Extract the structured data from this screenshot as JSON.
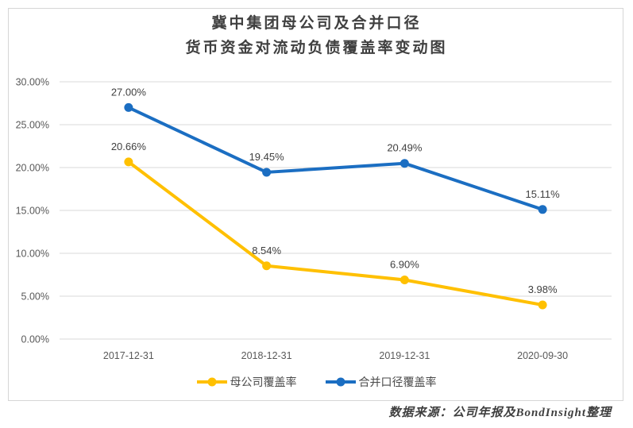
{
  "header": {
    "title_line1": "冀中集团母公司及合并口径",
    "title_line2": "货币资金对流动负债覆盖率变动图"
  },
  "footer": {
    "text": "数据来源：公司年报及BondInsight整理"
  },
  "colors": {
    "parent_series": "#FFC000",
    "consolidated_series": "#1B6EC2",
    "gridline": "#D9D9D9",
    "axis_text": "#595959",
    "data_label_text": "#3F3F3F",
    "chart_border": "#D6D6D6",
    "background": "#FFFFFF"
  },
  "chart_data": {
    "type": "line",
    "title": "冀中集团母公司及合并口径货币资金对流动负债覆盖率变动图",
    "categories": [
      "2017-12-31",
      "2018-12-31",
      "2019-12-31",
      "2020-09-30"
    ],
    "series": [
      {
        "name": "母公司覆盖率",
        "values": [
          20.66,
          8.54,
          6.9,
          3.98
        ],
        "labels": [
          "20.66%",
          "8.54%",
          "6.90%",
          "3.98%"
        ],
        "color": "#FFC000"
      },
      {
        "name": "合并口径覆盖率",
        "values": [
          27.0,
          19.45,
          20.49,
          15.11
        ],
        "labels": [
          "27.00%",
          "19.45%",
          "20.49%",
          "15.11%"
        ],
        "color": "#1B6EC2"
      }
    ],
    "xlabel": "",
    "ylabel": "",
    "ylim": [
      0,
      30
    ],
    "ytick_step": 5,
    "ytick_labels": [
      "0.00%",
      "5.00%",
      "10.00%",
      "15.00%",
      "20.00%",
      "25.00%",
      "30.00%"
    ],
    "grid": true,
    "legend_position": "bottom",
    "marker": "circle",
    "data_labels_shown": true
  }
}
